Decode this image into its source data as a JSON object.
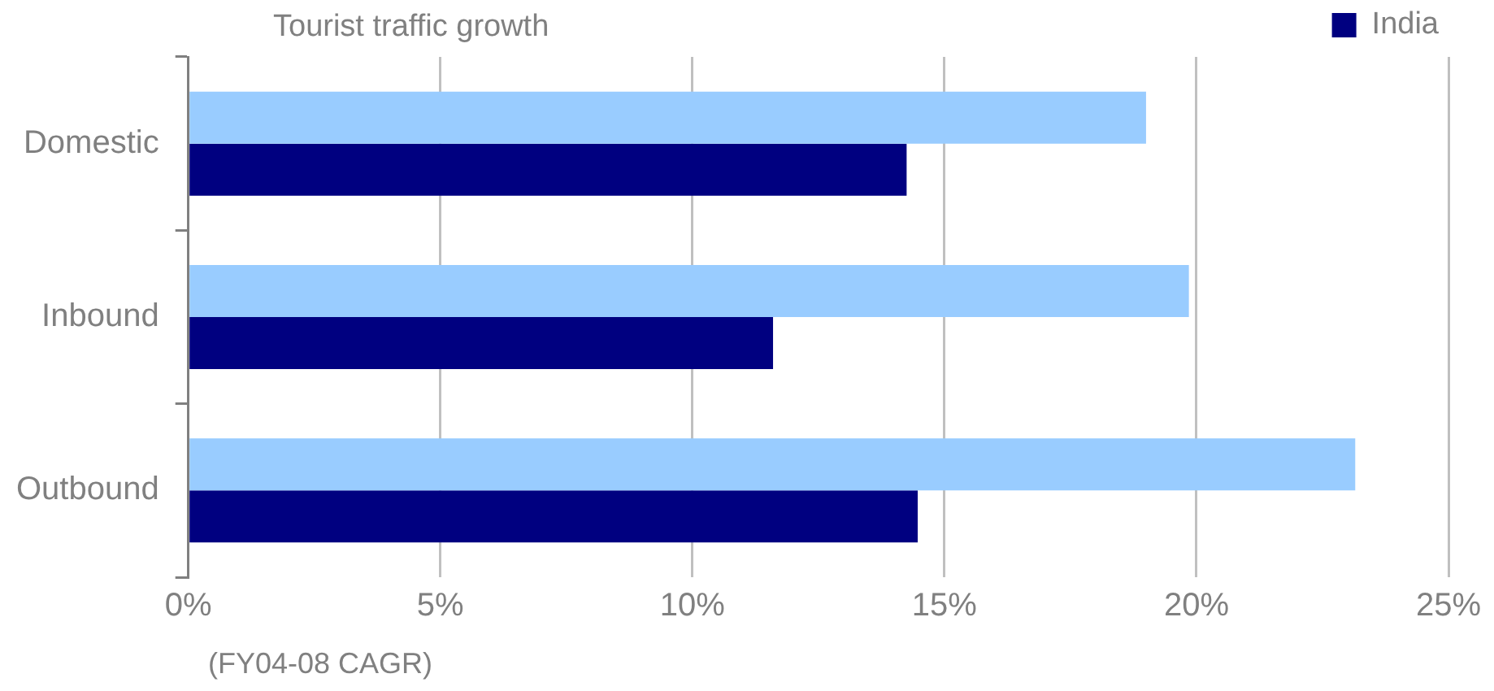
{
  "chart_data": {
    "type": "bar",
    "orientation": "horizontal",
    "title": "Tourist traffic growth",
    "annotations": [
      "(FY04-08 CAGR)"
    ],
    "categories": [
      "Domestic",
      "Inbound",
      "Outbound"
    ],
    "series": [
      {
        "color": "#99ccff",
        "values": [
          19.0,
          19.85,
          23.15
        ]
      },
      {
        "name": "India",
        "color": "#000080",
        "values": [
          14.25,
          11.6,
          14.47
        ]
      }
    ],
    "xlim": [
      0,
      25
    ],
    "xticks": [
      {
        "value": 0,
        "label": "0%"
      },
      {
        "value": 5,
        "label": "5%"
      },
      {
        "value": 10,
        "label": "10%"
      },
      {
        "value": 15,
        "label": "15%"
      },
      {
        "value": 20,
        "label": "20%"
      },
      {
        "value": 25,
        "label": "25%"
      }
    ],
    "grid": "x",
    "legend": "top right"
  }
}
